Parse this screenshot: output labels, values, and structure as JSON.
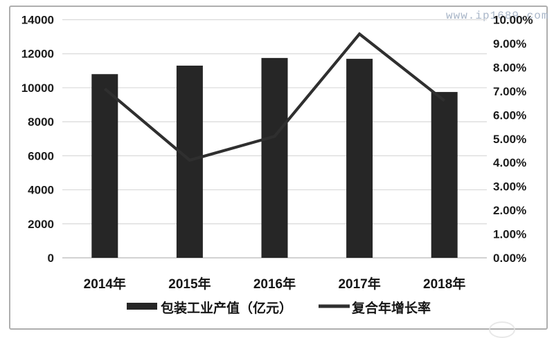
{
  "watermark": {
    "text": "www.ip1689.com",
    "color": "#a9b6c8"
  },
  "chart_data": {
    "type": "bar",
    "subtype": "combo-bar-line-dual-axis",
    "title": "",
    "categories": [
      "2014年",
      "2015年",
      "2016年",
      "2017年",
      "2018年"
    ],
    "series": [
      {
        "name": "包装工业产值（亿元）",
        "type": "bar",
        "axis": "left",
        "color": "#262626",
        "values": [
          10800,
          11300,
          11750,
          11700,
          9750
        ]
      },
      {
        "name": "复合年增长率",
        "type": "line",
        "axis": "right",
        "color": "#2f2f2f",
        "values_percent": [
          7.1,
          4.1,
          5.1,
          9.4,
          6.6
        ]
      }
    ],
    "left_axis": {
      "min": 0,
      "max": 14000,
      "step": 2000,
      "tick_labels": [
        "0",
        "2000",
        "4000",
        "6000",
        "8000",
        "10000",
        "12000",
        "14000"
      ]
    },
    "right_axis": {
      "min": 0,
      "max": 10,
      "step": 1,
      "tick_labels": [
        "0.00%",
        "1.00%",
        "2.00%",
        "3.00%",
        "4.00%",
        "5.00%",
        "6.00%",
        "7.00%",
        "8.00%",
        "9.00%",
        "10.00%"
      ]
    },
    "grid": "horizontal",
    "gridline_color": "#d9d9d9",
    "axis_line_color": "#c3c3c3",
    "text_color": "#1b1b1b",
    "legend_position": "bottom",
    "background": "#ffffff"
  }
}
